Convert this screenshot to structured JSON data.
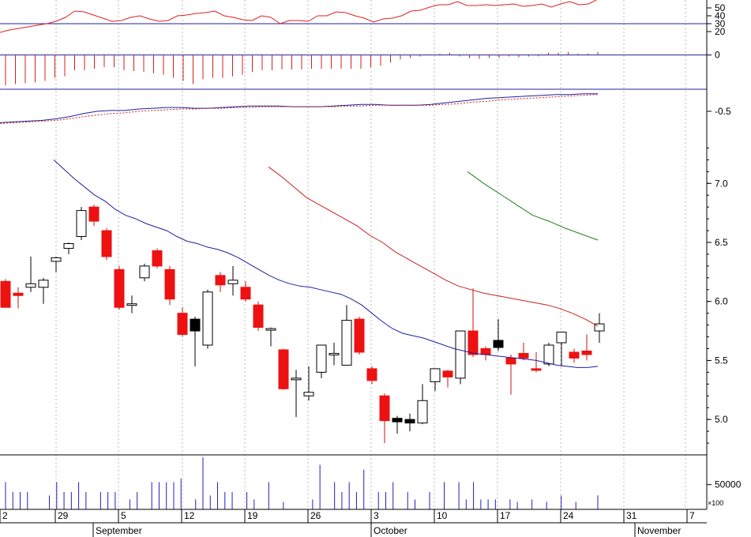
{
  "chart_data": [
    {
      "panel": "rsi",
      "type": "line",
      "y_ticks": [
        "50",
        "40",
        "30",
        "20"
      ],
      "reference_level": 30,
      "ylim": [
        0,
        60
      ],
      "values": [
        19,
        22,
        24,
        26,
        28,
        30,
        33,
        38,
        46,
        45,
        41,
        37,
        33,
        34,
        38,
        40,
        36,
        33,
        34,
        40,
        41,
        43,
        44,
        46,
        40,
        38,
        35,
        34,
        40,
        38,
        30,
        34,
        34,
        33,
        40,
        40,
        45,
        44,
        40,
        37,
        32,
        36,
        37,
        40,
        46,
        47,
        51,
        54,
        54,
        58,
        53,
        53,
        54,
        53,
        54,
        55,
        52,
        53,
        55,
        51,
        55,
        58,
        54,
        55,
        61
      ]
    },
    {
      "panel": "histogram",
      "type": "bar",
      "y_ticks": [
        "0"
      ],
      "ylim": [
        -2.2,
        0.5
      ],
      "values": [
        -2.0,
        -1.9,
        -1.85,
        -1.8,
        -1.7,
        -1.5,
        -1.4,
        -1.0,
        -1.0,
        -0.9,
        -0.8,
        -0.8,
        -1.0,
        -1.05,
        -1.1,
        -1.2,
        -1.3,
        -1.5,
        -1.7,
        -1.9,
        -1.6,
        -1.5,
        -1.5,
        -1.4,
        -1.3,
        -1.1,
        -1.0,
        -1.0,
        -0.95,
        -0.95,
        -0.95,
        -0.9,
        -0.9,
        -0.9,
        -0.9,
        -0.9,
        -0.9,
        -0.8,
        -0.7,
        -0.5,
        -0.3,
        -0.2,
        -0.1,
        0,
        0.1,
        0.15,
        -0.1,
        -0.2,
        -0.25,
        -0.2,
        -0.2,
        -0.1,
        -0.15,
        -0.1,
        -0.1,
        0.15,
        0.15,
        0.2,
        0.1,
        0.1,
        0.2
      ]
    },
    {
      "panel": "macd",
      "type": "line",
      "y_ticks": [
        "-0.5"
      ],
      "ylim": [
        -0.75,
        -0.2
      ],
      "series": [
        {
          "values": [
            -0.65,
            -0.64,
            -0.63,
            -0.62,
            -0.6,
            -0.57,
            -0.53,
            -0.5,
            -0.49,
            -0.49,
            -0.47,
            -0.46,
            -0.45,
            -0.45,
            -0.46,
            -0.46,
            -0.45,
            -0.44,
            -0.43,
            -0.43,
            -0.43,
            -0.44,
            -0.44,
            -0.44,
            -0.43,
            -0.42,
            -0.41,
            -0.41,
            -0.42,
            -0.42,
            -0.42,
            -0.41,
            -0.39,
            -0.37,
            -0.35,
            -0.33,
            -0.32,
            -0.31,
            -0.3,
            -0.29,
            -0.28,
            -0.28,
            -0.27,
            -0.27
          ]
        },
        {
          "values": [
            -0.66,
            -0.65,
            -0.64,
            -0.63,
            -0.62,
            -0.6,
            -0.57,
            -0.55,
            -0.53,
            -0.52,
            -0.5,
            -0.49,
            -0.48,
            -0.47,
            -0.47,
            -0.46,
            -0.46,
            -0.45,
            -0.45,
            -0.44,
            -0.44,
            -0.44,
            -0.44,
            -0.44,
            -0.44,
            -0.43,
            -0.43,
            -0.42,
            -0.42,
            -0.42,
            -0.42,
            -0.42,
            -0.41,
            -0.4,
            -0.38,
            -0.37,
            -0.35,
            -0.34,
            -0.33,
            -0.32,
            -0.31,
            -0.3,
            -0.29,
            -0.28
          ]
        }
      ]
    },
    {
      "panel": "price",
      "type": "candlestick",
      "y_ticks": [
        "7.0",
        "6.5",
        "6.0",
        "5.5",
        "5.0"
      ],
      "ylim": [
        4.7,
        7.45
      ],
      "candles": [
        [
          6.17,
          6.19,
          5.95,
          5.95
        ],
        [
          6.07,
          6.12,
          5.94,
          6.05
        ],
        [
          6.12,
          6.38,
          6.08,
          6.15
        ],
        [
          6.12,
          6.2,
          5.98,
          6.18
        ],
        [
          6.34,
          6.38,
          6.25,
          6.37
        ],
        [
          6.45,
          6.5,
          6.4,
          6.49
        ],
        [
          6.55,
          6.8,
          6.52,
          6.77
        ],
        [
          6.8,
          6.82,
          6.64,
          6.68
        ],
        [
          6.6,
          6.62,
          6.35,
          6.38
        ],
        [
          6.27,
          6.3,
          5.93,
          5.95
        ],
        [
          5.98,
          6.05,
          5.9,
          5.98
        ],
        [
          6.2,
          6.32,
          6.17,
          6.3
        ],
        [
          6.43,
          6.45,
          6.28,
          6.3
        ],
        [
          6.27,
          6.3,
          5.97,
          6.02
        ],
        [
          5.9,
          5.95,
          5.7,
          5.72
        ],
        [
          5.85,
          5.87,
          5.45,
          5.75
        ],
        [
          5.63,
          6.1,
          5.6,
          6.08
        ],
        [
          6.22,
          6.25,
          6.08,
          6.14
        ],
        [
          6.15,
          6.3,
          6.05,
          6.18
        ],
        [
          6.12,
          6.17,
          6.0,
          6.02
        ],
        [
          5.97,
          6.0,
          5.75,
          5.78
        ],
        [
          5.77,
          5.78,
          5.62,
          5.77
        ],
        [
          5.59,
          5.6,
          5.25,
          5.26
        ],
        [
          5.35,
          5.42,
          5.02,
          5.35
        ],
        [
          5.2,
          5.45,
          5.16,
          5.23
        ],
        [
          5.4,
          5.62,
          5.35,
          5.63
        ],
        [
          5.56,
          5.65,
          5.46,
          5.56
        ],
        [
          5.46,
          5.97,
          5.46,
          5.84
        ],
        [
          5.85,
          5.87,
          5.55,
          5.57
        ],
        [
          5.43,
          5.45,
          5.3,
          5.33
        ],
        [
          5.2,
          5.22,
          4.8,
          4.99
        ],
        [
          5.01,
          5.03,
          4.88,
          4.98
        ],
        [
          4.97,
          5.05,
          4.9,
          5.0
        ],
        [
          4.97,
          5.3,
          4.96,
          5.16
        ],
        [
          5.32,
          5.43,
          5.24,
          5.43
        ],
        [
          5.41,
          5.42,
          5.27,
          5.36
        ],
        [
          5.35,
          5.75,
          5.3,
          5.75
        ],
        [
          5.75,
          6.11,
          5.53,
          5.55
        ],
        [
          5.6,
          5.62,
          5.5,
          5.55
        ],
        [
          5.67,
          5.85,
          5.58,
          5.61
        ],
        [
          5.52,
          5.55,
          5.21,
          5.47
        ],
        [
          5.56,
          5.65,
          5.5,
          5.52
        ],
        [
          5.43,
          5.57,
          5.4,
          5.42
        ],
        [
          5.47,
          5.65,
          5.45,
          5.63
        ],
        [
          5.65,
          5.73,
          5.45,
          5.74
        ],
        [
          5.57,
          5.6,
          5.48,
          5.52
        ],
        [
          5.58,
          5.72,
          5.5,
          5.55
        ],
        [
          5.75,
          5.9,
          5.65,
          5.81
        ]
      ],
      "moving_averages": [
        {
          "color": "#2020a0",
          "values": [
            7.2,
            7.12,
            7.04,
            6.97,
            6.9,
            6.85,
            6.78,
            6.73,
            6.7,
            6.66,
            6.63,
            6.6,
            6.55,
            6.51,
            6.49,
            6.46,
            6.44,
            6.41,
            6.37,
            6.32,
            6.27,
            6.22,
            6.18,
            6.15,
            6.13,
            6.12,
            6.1,
            6.08,
            6.06,
            6.02,
            5.97,
            5.9,
            5.83,
            5.77,
            5.73,
            5.71,
            5.69,
            5.66,
            5.63,
            5.6,
            5.58,
            5.56,
            5.55,
            5.54,
            5.53,
            5.52,
            5.51,
            5.5,
            5.48,
            5.46,
            5.45,
            5.44,
            5.44,
            5.45
          ]
        },
        {
          "color": "#cc2020",
          "values": [
            7.14,
            7.06,
            6.97,
            6.88,
            6.82,
            6.76,
            6.7,
            6.64,
            6.56,
            6.5,
            6.42,
            6.36,
            6.3,
            6.24,
            6.18,
            6.13,
            6.1,
            6.07,
            6.05,
            6.03,
            6.01,
            5.99,
            5.97,
            5.94,
            5.9,
            5.85,
            5.79
          ]
        },
        {
          "color": "#208020",
          "values": [
            7.1,
            7.0,
            6.91,
            6.82,
            6.73,
            6.68,
            6.62,
            6.57,
            6.52
          ]
        }
      ]
    },
    {
      "panel": "volume",
      "type": "bar",
      "y_ticks": [
        "50000"
      ],
      "multiplier_label": "×100",
      "ylim": [
        0,
        110000
      ],
      "values": [
        55000,
        35000,
        35000,
        35000,
        0,
        0,
        28000,
        55000,
        35000,
        35000,
        55000,
        35000,
        0,
        35000,
        35000,
        35000,
        0,
        20000,
        35000,
        0,
        55000,
        55000,
        55000,
        55000,
        62000,
        0,
        20000,
        105000,
        28000,
        55000,
        35000,
        35000,
        0,
        35000,
        20000,
        0,
        55000,
        0,
        15000,
        0,
        0,
        0,
        20000,
        90000,
        0,
        55000,
        35000,
        55000,
        35000,
        80000,
        0,
        35000,
        35000,
        55000,
        0,
        35000,
        20000,
        0,
        35000,
        0,
        55000,
        0,
        55000,
        20000,
        55000,
        20000,
        20000,
        20000,
        0,
        20000,
        15000,
        0,
        20000,
        0,
        15000,
        0,
        28000,
        0,
        15000,
        0,
        0,
        28000
      ]
    },
    {
      "panel": "date-axis",
      "day_labels": [
        "2",
        "29",
        "5",
        "12",
        "19",
        "26",
        "3",
        "10",
        "17",
        "24",
        "31",
        "7"
      ],
      "month_labels": [
        "September",
        "October",
        "November"
      ]
    }
  ]
}
